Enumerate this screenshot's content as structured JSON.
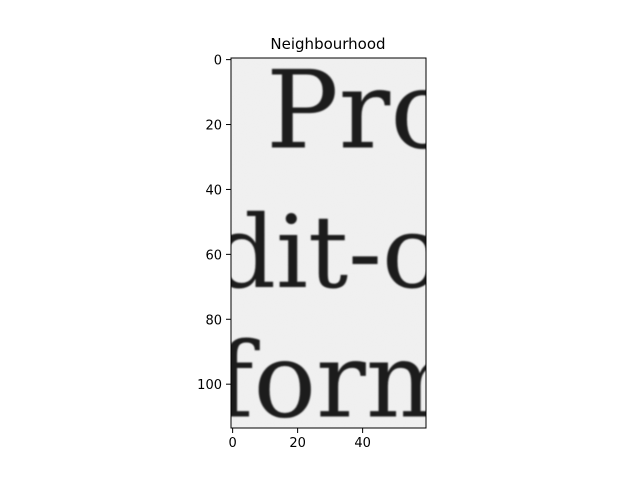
{
  "chart_data": {
    "type": "heatmap",
    "title": "Neighbourhood",
    "colormap": "gray",
    "image_size": {
      "width": 60,
      "height": 114
    },
    "xlim": [
      -0.5,
      59.5
    ],
    "ylim": [
      113.5,
      -0.5
    ],
    "xticks": [
      0,
      20,
      40
    ],
    "yticks": [
      0,
      20,
      40,
      60,
      80,
      100
    ],
    "xtick_labels": [
      "0",
      "20",
      "40"
    ],
    "ytick_labels": [
      "0",
      "20",
      "40",
      "60",
      "80",
      "100"
    ],
    "grid": false,
    "image_text_lines": [
      {
        "text": "Pro",
        "baseline_row": 27
      },
      {
        "text": "dit-c",
        "baseline_row": 70
      },
      {
        "text": "form",
        "baseline_row": 110
      }
    ],
    "colors": {
      "paper": "#efefef",
      "ink": "#1c1c1c"
    }
  }
}
